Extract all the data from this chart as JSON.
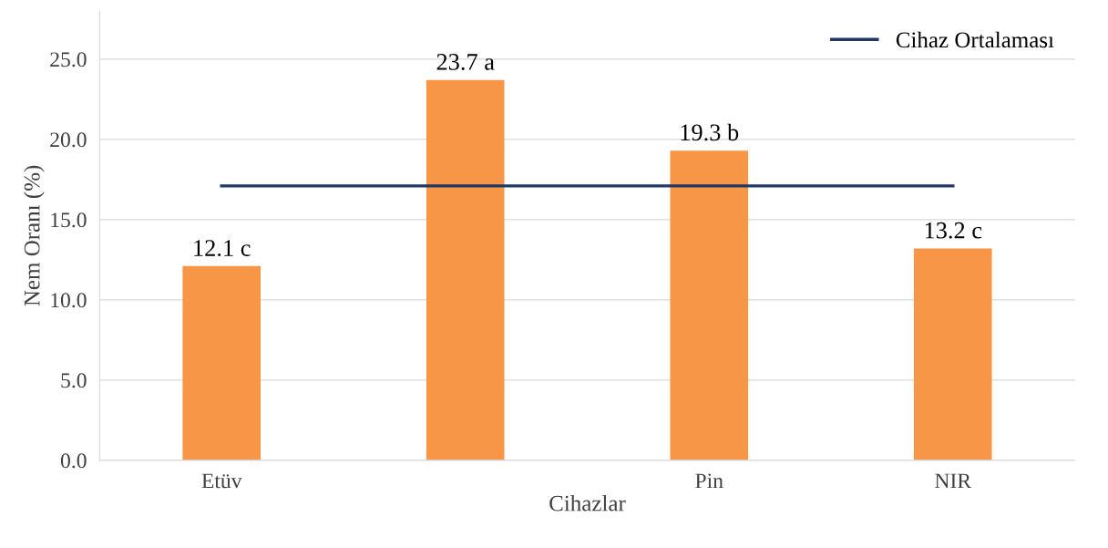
{
  "chart_data": {
    "type": "bar",
    "xlabel": "Cihazlar",
    "ylabel": "Nem Oranı (%)",
    "categories": [
      "Etüv",
      null,
      "Pin",
      "NIR"
    ],
    "series": [
      {
        "color": "#f79646",
        "values": [
          12.1,
          23.7,
          19.3,
          13.2
        ],
        "value_labels": [
          "12.1 c",
          "23.7 a",
          "19.3 b",
          "13.2 c"
        ]
      },
      {
        "type": "line",
        "name": "Cihaz Ortalaması",
        "color": "#1f3864",
        "values": [
          17.1,
          17.1,
          17.1,
          17.1
        ]
      }
    ],
    "ylim": [
      0,
      28
    ],
    "yticks": [
      {
        "value": 0,
        "label": "0.0"
      },
      {
        "value": 5,
        "label": "5.0"
      },
      {
        "value": 10,
        "label": "10.0"
      },
      {
        "value": 15,
        "label": "15.0"
      },
      {
        "value": 20,
        "label": "20.0"
      },
      {
        "value": 25,
        "label": "25.0"
      }
    ],
    "grid": "y",
    "legend": "top right",
    "marker": "none",
    "line_style": "solid"
  }
}
